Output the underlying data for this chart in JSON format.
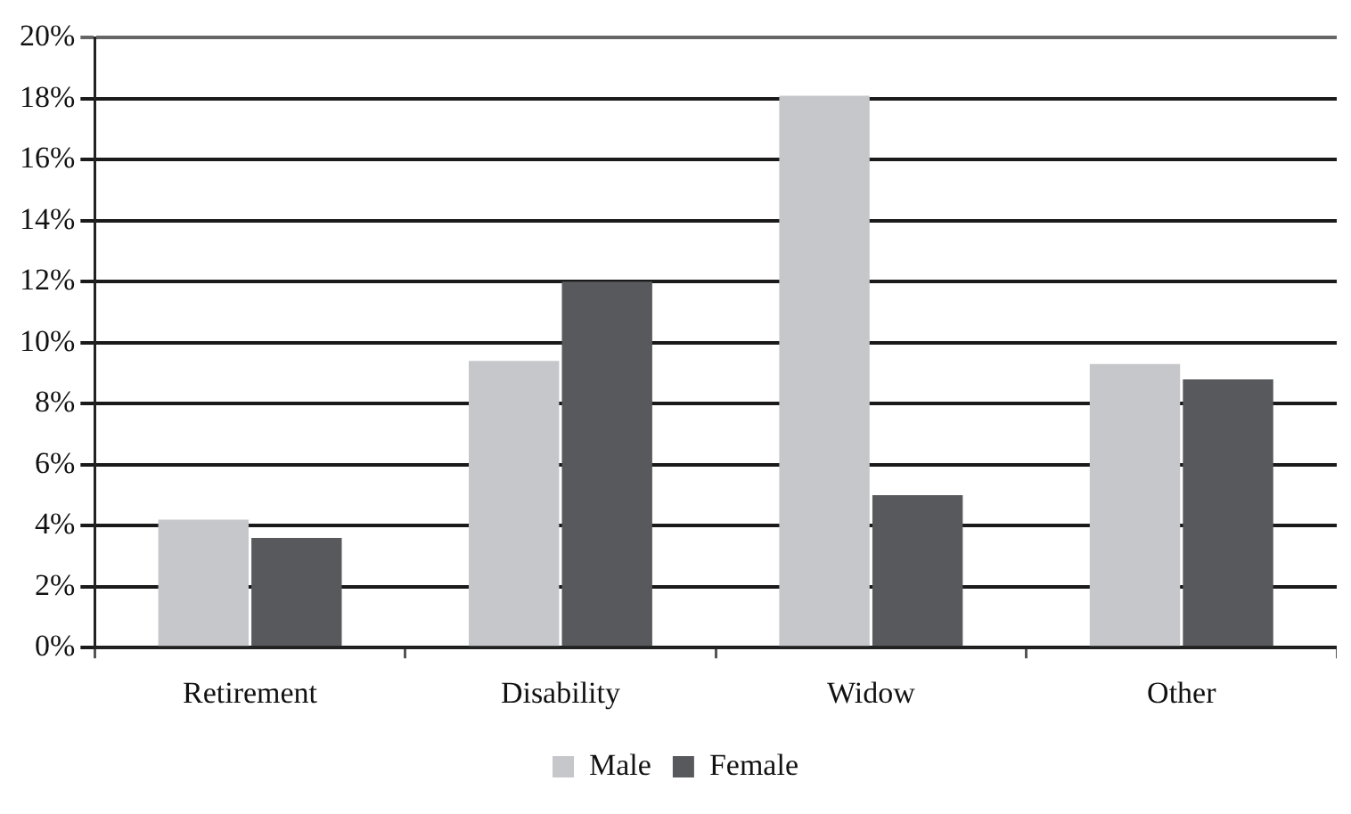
{
  "chart_data": {
    "type": "bar",
    "categories": [
      "Retirement",
      "Disability",
      "Widow",
      "Other"
    ],
    "series": [
      {
        "name": "Male",
        "color": "#c6c7cb",
        "values": [
          4.2,
          9.4,
          18.1,
          9.3
        ]
      },
      {
        "name": "Female",
        "color": "#58595d",
        "values": [
          3.6,
          12.0,
          5.0,
          8.8
        ]
      }
    ],
    "ylim": [
      0,
      20
    ],
    "yticks": [
      {
        "value": 0,
        "label": "0%"
      },
      {
        "value": 2,
        "label": "2%"
      },
      {
        "value": 4,
        "label": "4%"
      },
      {
        "value": 6,
        "label": "6%"
      },
      {
        "value": 8,
        "label": "8%"
      },
      {
        "value": 10,
        "label": "10%"
      },
      {
        "value": 12,
        "label": "12%"
      },
      {
        "value": 14,
        "label": "14%"
      },
      {
        "value": 16,
        "label": "16%"
      },
      {
        "value": 18,
        "label": "18%"
      },
      {
        "value": 20,
        "label": "20%"
      }
    ],
    "grid": "y",
    "legend": "bottom"
  }
}
